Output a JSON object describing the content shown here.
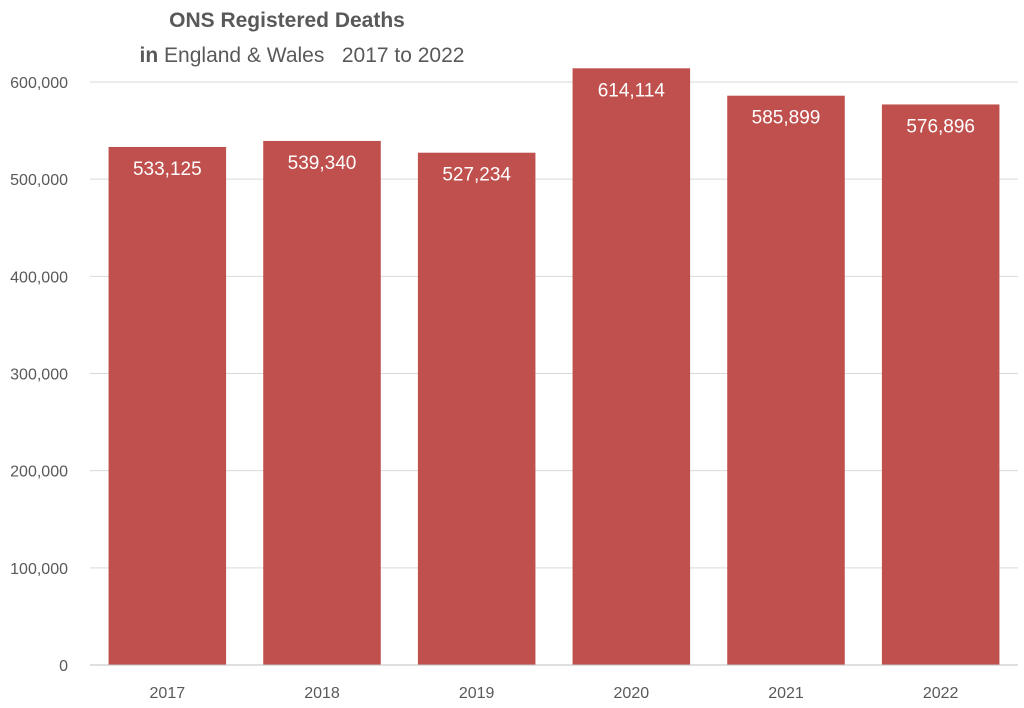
{
  "chart_data": {
    "type": "bar",
    "title_line1": "ONS Registered Deaths",
    "title_line2_bold": "in",
    "title_line2_rest": " England & Wales   2017 to 2022",
    "categories": [
      "2017",
      "2018",
      "2019",
      "2020",
      "2021",
      "2022"
    ],
    "values": [
      533125,
      539340,
      527234,
      614114,
      585899,
      576896
    ],
    "value_labels": [
      "533,125",
      "539,340",
      "527,234",
      "614,114",
      "585,899",
      "576,896"
    ],
    "ylim": [
      0,
      600000
    ],
    "y_ticks": [
      0,
      100000,
      200000,
      300000,
      400000,
      500000,
      600000
    ],
    "y_tick_labels": [
      "0",
      "100,000",
      "200,000",
      "300,000",
      "400,000",
      "500,000",
      "600,000"
    ],
    "xlabel": "",
    "ylabel": "",
    "grid": true,
    "legend": "none",
    "bar_color": "#c0504d"
  }
}
